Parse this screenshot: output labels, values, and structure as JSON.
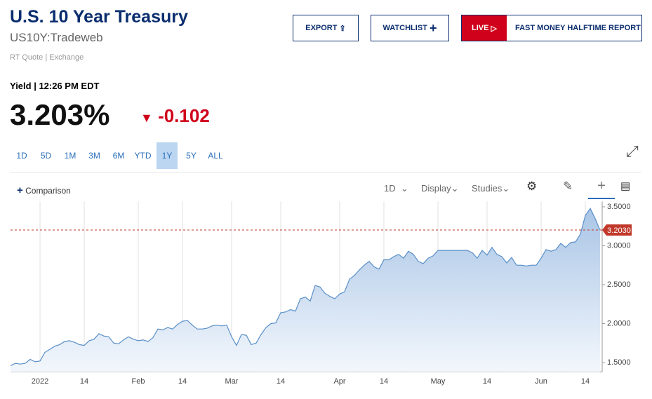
{
  "header": {
    "title": "U.S. 10 Year Treasury",
    "symbol": "US10Y:Tradeweb",
    "source": "RT Quote | Exchange",
    "buttons": [
      "EXPORT",
      "WATCHLIST"
    ],
    "live": "LIVE",
    "show": "FAST MONEY HALFTIME REPORT"
  },
  "quote": {
    "label": "Yield | 12:26 PM EDT",
    "price": "3.203%",
    "change": "-0.102"
  },
  "ranges": {
    "items": [
      "1D",
      "5D",
      "1M",
      "3M",
      "6M",
      "YTD",
      "1Y",
      "5Y",
      "ALL"
    ],
    "active": 6
  },
  "toolbar": {
    "comparison": "Comparison",
    "interval": "1D",
    "display": "Display",
    "studies": "Studies"
  },
  "chart_data": {
    "type": "area",
    "color": "#5a8fc8",
    "categories": [
      null,
      null,
      null,
      null,
      null,
      null,
      "2022",
      null,
      null,
      null,
      null,
      null,
      null,
      null,
      null,
      "14",
      null,
      null,
      null,
      null,
      null,
      null,
      null,
      null,
      null,
      null,
      "Feb",
      null,
      null,
      null,
      null,
      null,
      null,
      null,
      null,
      "14",
      null,
      null,
      null,
      null,
      null,
      null,
      null,
      null,
      null,
      "Mar",
      null,
      null,
      null,
      null,
      null,
      null,
      null,
      null,
      null,
      "14",
      null,
      null,
      null,
      null,
      null,
      null,
      null,
      null,
      null,
      null,
      null,
      "Apr",
      null,
      null,
      null,
      null,
      null,
      null,
      null,
      null,
      "14",
      null,
      null,
      null,
      null,
      null,
      null,
      null,
      null,
      null,
      null,
      "May",
      null,
      null,
      null,
      null,
      null,
      null,
      null,
      null,
      null,
      "14",
      null,
      null,
      null,
      null,
      null,
      null,
      null,
      null,
      null,
      null,
      "Jun",
      null,
      null,
      null,
      null,
      null,
      null,
      null,
      null,
      "14",
      null,
      null,
      null
    ],
    "values": [
      1.46,
      1.49,
      1.48,
      1.49,
      1.54,
      1.51,
      1.52,
      1.63,
      1.67,
      1.71,
      1.73,
      1.77,
      1.78,
      1.76,
      1.73,
      1.72,
      1.78,
      1.8,
      1.87,
      1.84,
      1.83,
      1.75,
      1.74,
      1.79,
      1.83,
      1.8,
      1.78,
      1.79,
      1.77,
      1.82,
      1.93,
      1.92,
      1.95,
      1.93,
      1.99,
      2.03,
      2.04,
      1.98,
      1.93,
      1.93,
      1.94,
      1.97,
      1.98,
      1.97,
      1.98,
      1.83,
      1.72,
      1.86,
      1.85,
      1.73,
      1.75,
      1.86,
      1.95,
      2.0,
      2.01,
      2.14,
      2.15,
      2.18,
      2.16,
      2.32,
      2.34,
      2.29,
      2.49,
      2.47,
      2.39,
      2.35,
      2.32,
      2.38,
      2.41,
      2.57,
      2.62,
      2.69,
      2.75,
      2.8,
      2.73,
      2.7,
      2.82,
      2.82,
      2.86,
      2.89,
      2.84,
      2.93,
      2.89,
      2.8,
      2.77,
      2.84,
      2.87,
      2.94,
      2.94,
      2.94,
      2.94,
      2.94,
      2.94,
      2.94,
      2.91,
      2.84,
      2.94,
      2.88,
      2.98,
      2.89,
      2.86,
      2.78,
      2.85,
      2.75,
      2.75,
      2.74,
      2.75,
      2.75,
      2.84,
      2.95,
      2.93,
      2.95,
      3.03,
      2.98,
      3.04,
      3.05,
      3.15,
      3.39,
      3.48,
      3.35,
      3.2
    ],
    "ylim": [
      1.38,
      3.57
    ],
    "yticks": [
      {
        "value": 1.5,
        "label": "1.5000"
      },
      {
        "value": 2,
        "label": "2.0000"
      },
      {
        "value": 2.5,
        "label": "2.5000"
      },
      {
        "value": 3,
        "label": "3.0000"
      },
      {
        "value": 3.5,
        "label": "3.5000"
      }
    ],
    "reference_line": {
      "value": 3.203,
      "label": "3.2030"
    }
  }
}
